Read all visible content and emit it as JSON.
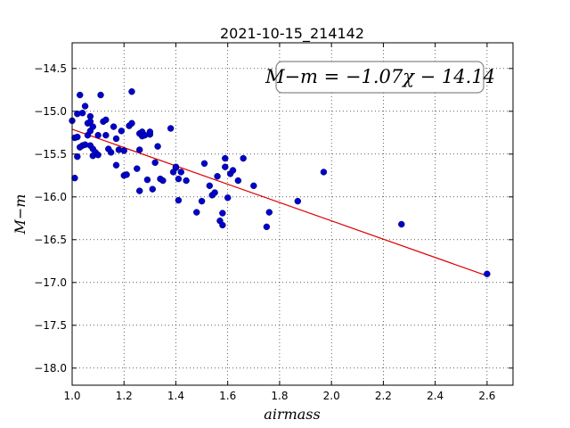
{
  "chart_data": {
    "type": "scatter",
    "title": "2021-10-15_214142",
    "xlabel": "airmass",
    "ylabel": "M−m",
    "xlim": [
      1.0,
      2.7
    ],
    "ylim": [
      -18.2,
      -14.2
    ],
    "xticks": [
      1.0,
      1.2,
      1.4,
      1.6,
      1.8,
      2.0,
      2.2,
      2.4,
      2.6
    ],
    "xtick_labels": [
      "1.0",
      "1.2",
      "1.4",
      "1.6",
      "1.8",
      "2.0",
      "2.2",
      "2.4",
      "2.6"
    ],
    "yticks": [
      -14.5,
      -15.0,
      -15.5,
      -16.0,
      -16.5,
      -17.0,
      -17.5,
      -18.0
    ],
    "ytick_labels": [
      "−14.5",
      "−15.0",
      "−15.5",
      "−16.0",
      "−16.5",
      "−17.0",
      "−17.5",
      "−18.0"
    ],
    "grid": true,
    "annotation": "M−m = −1.07χ − 14.14",
    "annotation_position": "top-right",
    "fit_line": {
      "slope": -1.07,
      "intercept": -14.14,
      "x_range": [
        1.0,
        2.6
      ],
      "color": "#dd0000"
    },
    "point_color": "#0000cc",
    "points": [
      [
        1.0,
        -15.11
      ],
      [
        1.01,
        -15.78
      ],
      [
        1.01,
        -15.31
      ],
      [
        1.02,
        -15.3
      ],
      [
        1.02,
        -15.03
      ],
      [
        1.02,
        -15.53
      ],
      [
        1.03,
        -15.42
      ],
      [
        1.03,
        -14.81
      ],
      [
        1.04,
        -15.02
      ],
      [
        1.04,
        -15.4
      ],
      [
        1.05,
        -14.94
      ],
      [
        1.05,
        -15.39
      ],
      [
        1.06,
        -15.14
      ],
      [
        1.06,
        -15.28
      ],
      [
        1.07,
        -15.06
      ],
      [
        1.07,
        -15.12
      ],
      [
        1.07,
        -15.4
      ],
      [
        1.07,
        -15.23
      ],
      [
        1.08,
        -15.18
      ],
      [
        1.08,
        -15.44
      ],
      [
        1.08,
        -15.52
      ],
      [
        1.09,
        -15.48
      ],
      [
        1.1,
        -15.51
      ],
      [
        1.1,
        -15.28
      ],
      [
        1.11,
        -14.81
      ],
      [
        1.12,
        -15.12
      ],
      [
        1.13,
        -15.1
      ],
      [
        1.13,
        -15.28
      ],
      [
        1.14,
        -15.44
      ],
      [
        1.15,
        -15.48
      ],
      [
        1.16,
        -15.18
      ],
      [
        1.17,
        -15.32
      ],
      [
        1.17,
        -15.63
      ],
      [
        1.18,
        -15.45
      ],
      [
        1.19,
        -15.23
      ],
      [
        1.2,
        -15.46
      ],
      [
        1.2,
        -15.75
      ],
      [
        1.21,
        -15.74
      ],
      [
        1.22,
        -15.17
      ],
      [
        1.23,
        -15.14
      ],
      [
        1.23,
        -14.77
      ],
      [
        1.25,
        -15.67
      ],
      [
        1.26,
        -15.45
      ],
      [
        1.26,
        -15.93
      ],
      [
        1.26,
        -15.26
      ],
      [
        1.27,
        -15.24
      ],
      [
        1.27,
        -15.29
      ],
      [
        1.28,
        -15.28
      ],
      [
        1.29,
        -15.8
      ],
      [
        1.3,
        -15.27
      ],
      [
        1.3,
        -15.24
      ],
      [
        1.31,
        -15.91
      ],
      [
        1.32,
        -15.6
      ],
      [
        1.33,
        -15.41
      ],
      [
        1.34,
        -15.79
      ],
      [
        1.35,
        -15.81
      ],
      [
        1.38,
        -15.2
      ],
      [
        1.39,
        -15.71
      ],
      [
        1.4,
        -15.65
      ],
      [
        1.4,
        -15.66
      ],
      [
        1.41,
        -16.04
      ],
      [
        1.41,
        -15.79
      ],
      [
        1.42,
        -15.71
      ],
      [
        1.44,
        -15.81
      ],
      [
        1.48,
        -16.18
      ],
      [
        1.5,
        -16.05
      ],
      [
        1.51,
        -15.61
      ],
      [
        1.53,
        -15.87
      ],
      [
        1.54,
        -15.98
      ],
      [
        1.55,
        -15.95
      ],
      [
        1.56,
        -15.76
      ],
      [
        1.57,
        -16.28
      ],
      [
        1.58,
        -16.33
      ],
      [
        1.58,
        -16.19
      ],
      [
        1.59,
        -15.55
      ],
      [
        1.59,
        -15.65
      ],
      [
        1.6,
        -16.01
      ],
      [
        1.61,
        -15.73
      ],
      [
        1.62,
        -15.69
      ],
      [
        1.64,
        -15.81
      ],
      [
        1.66,
        -15.55
      ],
      [
        1.7,
        -15.87
      ],
      [
        1.75,
        -16.35
      ],
      [
        1.76,
        -16.18
      ],
      [
        1.87,
        -16.05
      ],
      [
        1.97,
        -15.71
      ],
      [
        2.27,
        -16.32
      ],
      [
        2.6,
        -16.9
      ]
    ]
  }
}
